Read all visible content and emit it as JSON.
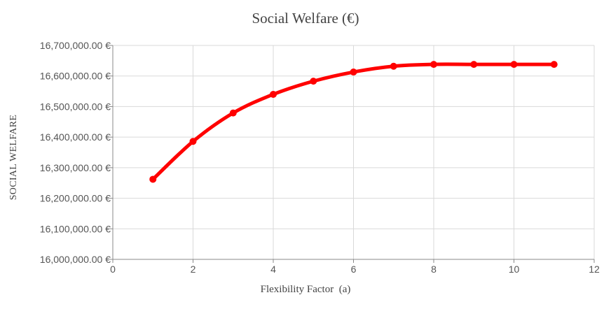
{
  "chart_data": {
    "type": "line",
    "title": "Social Welfare (€)",
    "xlabel": "Flexibility Factor  (a)",
    "ylabel": "SOCIAL WELFARE",
    "xlim": [
      0,
      12
    ],
    "ylim": [
      16000000,
      16700000
    ],
    "x_ticks": [
      0,
      2,
      4,
      6,
      8,
      10,
      12
    ],
    "y_ticks": [
      16000000,
      16100000,
      16200000,
      16300000,
      16400000,
      16500000,
      16600000,
      16700000
    ],
    "y_tick_labels": [
      "16,000,000.00 €",
      "16,100,000.00 €",
      "16,200,000.00 €",
      "16,300,000.00 €",
      "16,400,000.00 €",
      "16,500,000.00 €",
      "16,600,000.00 €",
      "16,700,000.00 €"
    ],
    "grid": true,
    "legend": "none",
    "series": [
      {
        "color": "#ff0000",
        "x": [
          1,
          2,
          3,
          4,
          5,
          6,
          7,
          8,
          9,
          10,
          11
        ],
        "values": [
          16262000,
          16386000,
          16479000,
          16540000,
          16583000,
          16613000,
          16632000,
          16638000,
          16638000,
          16638000,
          16638000
        ]
      }
    ]
  }
}
